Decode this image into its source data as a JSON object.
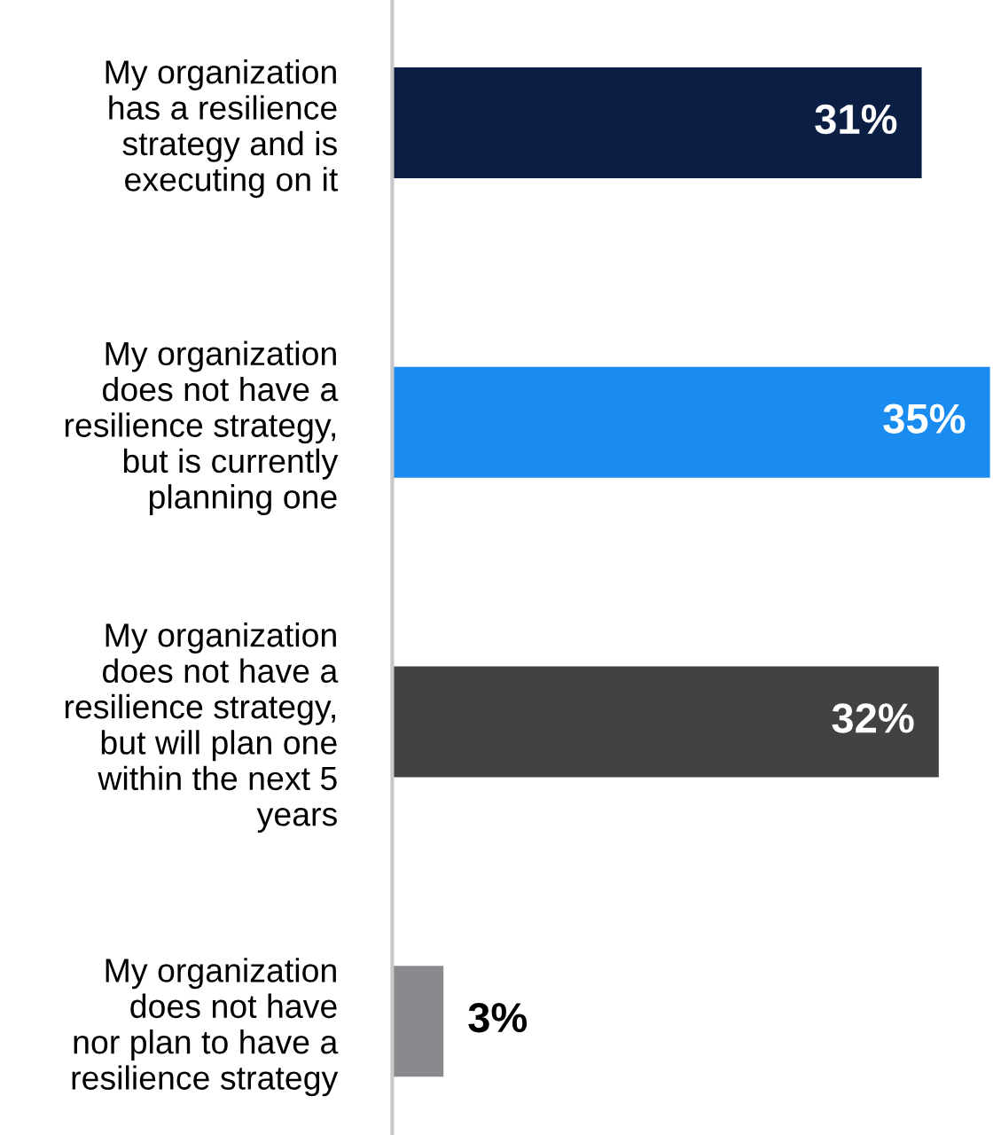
{
  "chart_data": {
    "type": "bar",
    "orientation": "horizontal",
    "categories": [
      "My organization\nhas a resilience\nstrategy and is\nexecuting on it",
      "My organization\ndoes not have a\nresilience strategy,\nbut is currently\nplanning one",
      "My organization\ndoes not have a\nresilience strategy,\nbut will plan one\nwithin the next 5\nyears",
      "My organization\ndoes not have\nnor plan to have a\nresilience strategy"
    ],
    "values": [
      31,
      35,
      32,
      3
    ],
    "colors": [
      "#0b1f45",
      "#1a8cf0",
      "#424244",
      "#8a8a8e"
    ],
    "value_labels": [
      "31%",
      "35%",
      "32%",
      "3%"
    ]
  }
}
